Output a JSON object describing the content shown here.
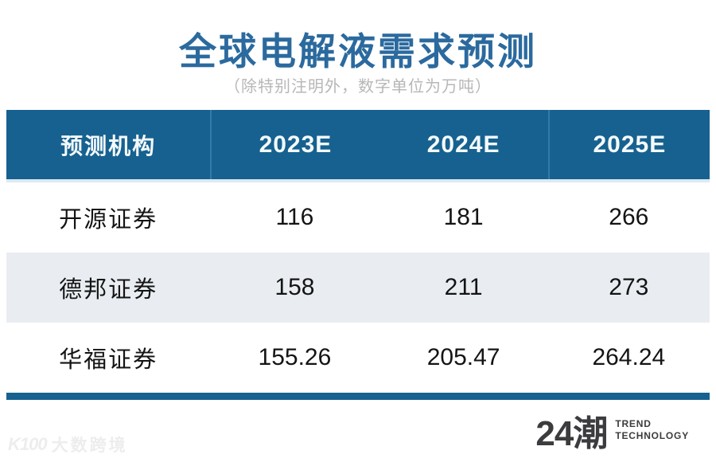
{
  "page": {
    "title": "全球电解液需求预测",
    "subtitle": "（除特别注明外，数字单位为万吨）"
  },
  "chart_data": {
    "type": "table",
    "title": "全球电解液需求预测",
    "subtitle": "（除特别注明外，数字单位为万吨）",
    "unit": "万吨",
    "columns": [
      "预测机构",
      "2023E",
      "2024E",
      "2025E"
    ],
    "rows": [
      [
        "开源证券",
        "116",
        "181",
        "266"
      ],
      [
        "德邦证券",
        "158",
        "211",
        "273"
      ],
      [
        "华福证券",
        "155.26",
        "205.47",
        "264.24"
      ]
    ]
  },
  "footer": {
    "brand_cn": "24潮",
    "brand_en_line1": "TREND",
    "brand_en_line2": "TECHNOLOGY"
  },
  "watermark": {
    "logo": "K100",
    "text": "大数跨境"
  },
  "colors": {
    "title_blue": "#2b6a9e",
    "header_blue": "#16618f",
    "row_stripe": "#e9edf2",
    "subtitle_gray": "#b7b7b7",
    "text_black": "#141414",
    "brand_gray": "#3c3c3f"
  }
}
